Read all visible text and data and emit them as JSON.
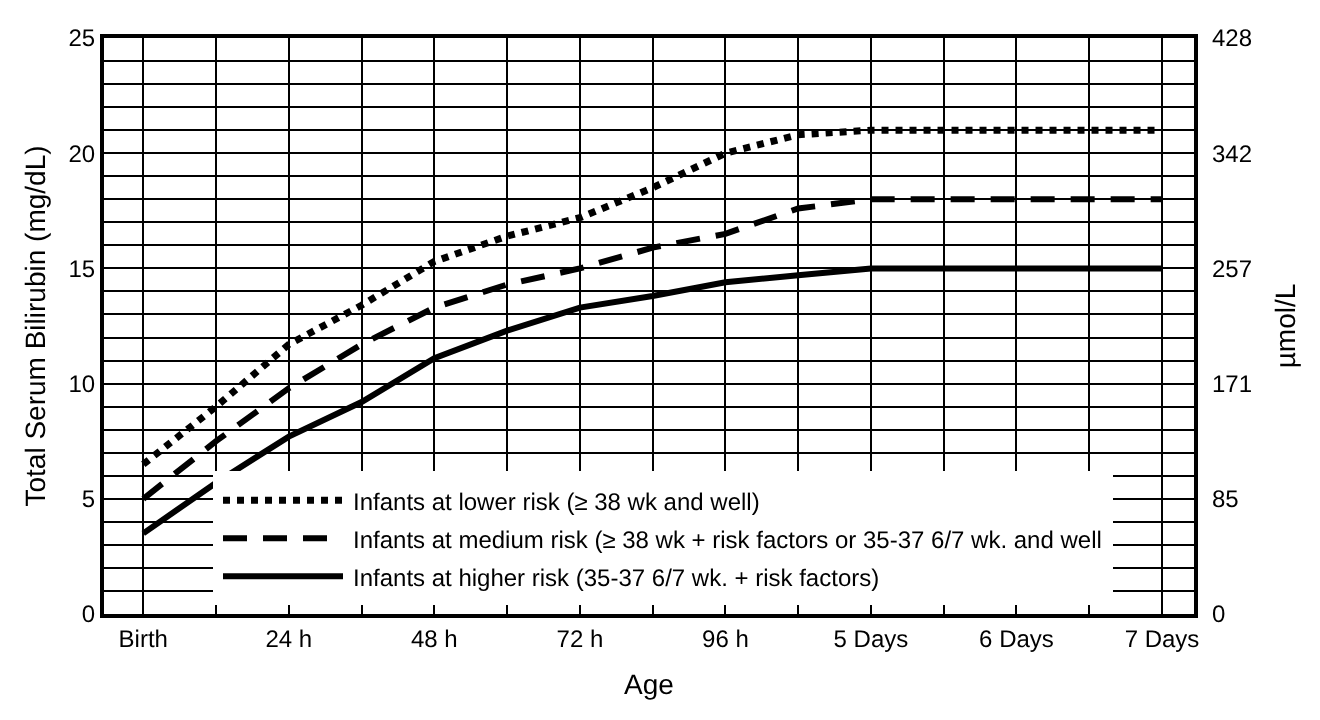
{
  "chart_data": {
    "type": "line",
    "xlabel": "Age",
    "ylabel": "Total Serum Bilirubin (mg/dL)",
    "y2label": "µmol/L",
    "categories": [
      "Birth",
      null,
      "24 h",
      null,
      "48 h",
      null,
      "72 h",
      null,
      "96 h",
      null,
      "5 Days",
      null,
      "6 Days",
      null,
      "7 Days"
    ],
    "series": [
      {
        "name": "Infants at lower risk (≥ 38 wk and well)",
        "color": "#000000",
        "line_style": "dotted",
        "values": [
          6.5,
          9.0,
          11.7,
          13.4,
          15.3,
          16.4,
          17.2,
          18.5,
          20.0,
          20.8,
          21.0,
          21.0,
          21.0,
          21.0,
          21.0
        ]
      },
      {
        "name": "Infants at medium risk (≥ 38 wk + risk factors or 35-37 6/7 wk. and well",
        "color": "#000000",
        "line_style": "dashed",
        "values": [
          5.0,
          7.5,
          9.8,
          11.7,
          13.3,
          14.3,
          15.0,
          15.9,
          16.5,
          17.6,
          18.0,
          18.0,
          18.0,
          18.0,
          18.0
        ]
      },
      {
        "name": "Infants at higher risk (35-37 6/7 wk. + risk factors)",
        "color": "#000000",
        "line_style": "solid",
        "values": [
          3.5,
          5.7,
          7.7,
          9.2,
          11.1,
          12.3,
          13.3,
          13.8,
          14.4,
          14.7,
          15.0,
          15.0,
          15.0,
          15.0,
          15.0
        ]
      }
    ],
    "ylim": [
      0,
      25
    ],
    "y2lim": [
      0,
      427.5
    ],
    "yticks": [
      0,
      {
        "value": 1,
        "label": null
      },
      {
        "value": 2,
        "label": null
      },
      {
        "value": 3,
        "label": null
      },
      {
        "value": 4,
        "label": null
      },
      5,
      {
        "value": 6,
        "label": null
      },
      {
        "value": 7,
        "label": null
      },
      {
        "value": 8,
        "label": null
      },
      {
        "value": 9,
        "label": null
      },
      10,
      {
        "value": 11,
        "label": null
      },
      {
        "value": 12,
        "label": null
      },
      {
        "value": 13,
        "label": null
      },
      {
        "value": 14,
        "label": null
      },
      15,
      {
        "value": 16,
        "label": null
      },
      {
        "value": 17,
        "label": null
      },
      {
        "value": 18,
        "label": null
      },
      {
        "value": 19,
        "label": null
      },
      20,
      {
        "value": 21,
        "label": null
      },
      {
        "value": 22,
        "label": null
      },
      {
        "value": 23,
        "label": null
      },
      {
        "value": 24,
        "label": null
      },
      25
    ],
    "y2ticks": [
      0,
      {
        "value": 85.5,
        "label": "85"
      },
      171,
      {
        "value": 256.5,
        "label": "257"
      },
      342,
      {
        "value": 427.5,
        "label": "428"
      }
    ],
    "grid": true,
    "legend": "bottom left",
    "marker": "none"
  }
}
